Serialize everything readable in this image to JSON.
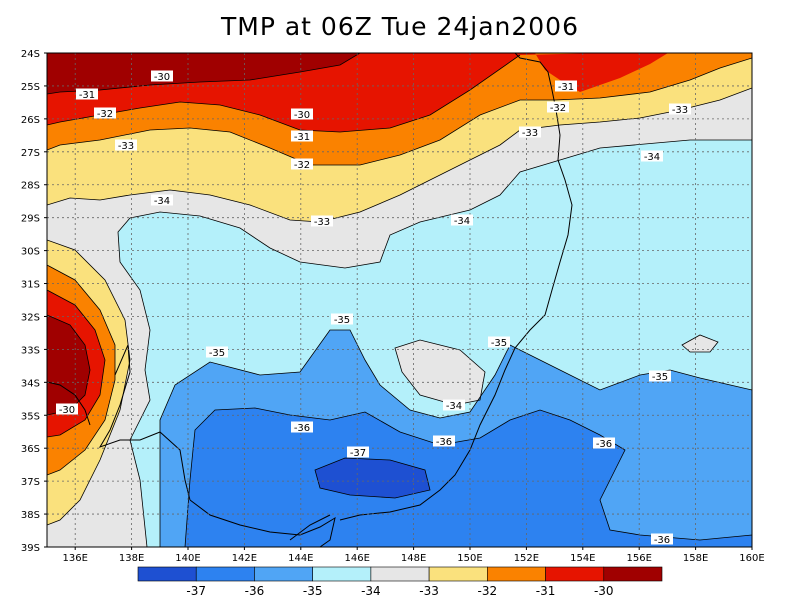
{
  "title": "TMP at 06Z Tue 24jan2006",
  "lat_labels": [
    "24S",
    "25S",
    "26S",
    "27S",
    "28S",
    "29S",
    "30S",
    "31S",
    "32S",
    "33S",
    "34S",
    "35S",
    "36S",
    "37S",
    "38S",
    "39S"
  ],
  "lon_labels": [
    "136E",
    "138E",
    "140E",
    "142E",
    "144E",
    "146E",
    "148E",
    "150E",
    "152E",
    "154E",
    "156E",
    "158E",
    "160E"
  ],
  "colorbar": {
    "labels": [
      "-37",
      "-36",
      "-35",
      "-34",
      "-33",
      "-32",
      "-31",
      "-30"
    ],
    "colors": [
      "#1e50d2",
      "#2d82f0",
      "#50a5f5",
      "#b4f0fa",
      "#e6e6e6",
      "#fae17d",
      "#fa8200",
      "#e61400",
      "#a00000"
    ]
  },
  "contour_labels": [
    {
      "text": "-30"
    },
    {
      "text": "-31"
    },
    {
      "text": "-32"
    },
    {
      "text": "-30"
    },
    {
      "text": "-31"
    },
    {
      "text": "-32"
    },
    {
      "text": "-31"
    },
    {
      "text": "-32"
    },
    {
      "text": "-33"
    },
    {
      "text": "-33"
    },
    {
      "text": "-34"
    },
    {
      "text": "-33"
    },
    {
      "text": "-34"
    },
    {
      "text": "-34"
    },
    {
      "text": "-33"
    },
    {
      "text": "-35"
    },
    {
      "text": "-35"
    },
    {
      "text": "-35"
    },
    {
      "text": "-35"
    },
    {
      "text": "-34"
    },
    {
      "text": "-36"
    },
    {
      "text": "-36"
    },
    {
      "text": "-36"
    },
    {
      "text": "-37"
    },
    {
      "text": "-30"
    },
    {
      "text": "-36"
    }
  ]
}
